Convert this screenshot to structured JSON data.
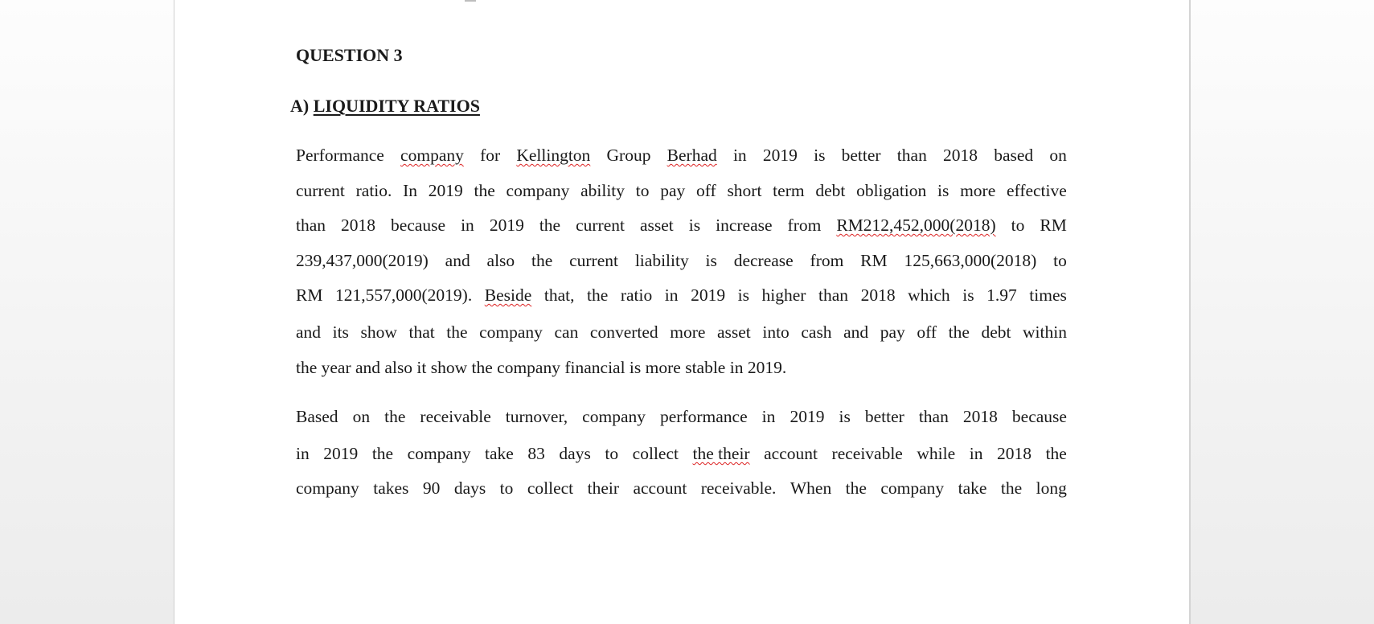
{
  "heading": "QUESTION 3",
  "section_prefix": "A)",
  "section_title": "LIQUIDITY RATIOS",
  "paragraphs": [
    {
      "lines": [
        [
          {
            "t": "Performance"
          },
          {
            "t": "company",
            "err": true
          },
          {
            "t": "for"
          },
          {
            "t": "Kellington",
            "err": true
          },
          {
            "t": "Group"
          },
          {
            "t": "Berhad",
            "err": true
          },
          {
            "t": "in"
          },
          {
            "t": "2019"
          },
          {
            "t": "is"
          },
          {
            "t": "better"
          },
          {
            "t": "than"
          },
          {
            "t": "2018"
          },
          {
            "t": "based"
          },
          {
            "t": "on"
          }
        ],
        [
          {
            "t": "current"
          },
          {
            "t": "ratio."
          },
          {
            "t": "In"
          },
          {
            "t": "2019"
          },
          {
            "t": "the"
          },
          {
            "t": "company"
          },
          {
            "t": "ability"
          },
          {
            "t": "to"
          },
          {
            "t": "pay"
          },
          {
            "t": "off"
          },
          {
            "t": "short"
          },
          {
            "t": "term"
          },
          {
            "t": "debt"
          },
          {
            "t": "obligation"
          },
          {
            "t": "is"
          },
          {
            "t": "more"
          },
          {
            "t": "effective"
          }
        ],
        [
          {
            "t": "than"
          },
          {
            "t": "2018"
          },
          {
            "t": "because"
          },
          {
            "t": "in"
          },
          {
            "t": "2019"
          },
          {
            "t": "the"
          },
          {
            "t": "current"
          },
          {
            "t": "asset"
          },
          {
            "t": "is"
          },
          {
            "t": "increase"
          },
          {
            "t": "from"
          },
          {
            "t": "RM212,452,000(2018)",
            "err": true
          },
          {
            "t": "to"
          },
          {
            "t": "RM"
          }
        ],
        [
          {
            "t": "239,437,000(2019)"
          },
          {
            "t": "and"
          },
          {
            "t": "also"
          },
          {
            "t": "the"
          },
          {
            "t": "current"
          },
          {
            "t": "liability"
          },
          {
            "t": "is"
          },
          {
            "t": "decrease"
          },
          {
            "t": "from"
          },
          {
            "t": "RM"
          },
          {
            "t": "125,663,000(2018)"
          },
          {
            "t": "to"
          }
        ],
        [
          {
            "t": "RM"
          },
          {
            "t": "121,557,000(2019)."
          },
          {
            "t": "Beside",
            "err": true
          },
          {
            "t": "that,"
          },
          {
            "t": "the"
          },
          {
            "t": "ratio"
          },
          {
            "t": "in"
          },
          {
            "t": "2019"
          },
          {
            "t": "is"
          },
          {
            "t": "higher"
          },
          {
            "t": "than"
          },
          {
            "t": "2018"
          },
          {
            "t": "which"
          },
          {
            "t": "is"
          },
          {
            "t": "1.97"
          },
          {
            "t": "times"
          }
        ],
        [
          {
            "t": "and"
          },
          {
            "t": "its"
          },
          {
            "t": "show"
          },
          {
            "t": "that"
          },
          {
            "t": "the"
          },
          {
            "t": "company"
          },
          {
            "t": "can"
          },
          {
            "t": "converted"
          },
          {
            "t": "more"
          },
          {
            "t": "asset"
          },
          {
            "t": "into"
          },
          {
            "t": "cash"
          },
          {
            "t": "and"
          },
          {
            "t": "pay"
          },
          {
            "t": "off"
          },
          {
            "t": "the"
          },
          {
            "t": "debt"
          },
          {
            "t": "within"
          }
        ],
        [
          {
            "t": "the year and also it show the company financial is more stable in 2019."
          }
        ]
      ]
    },
    {
      "lines": [
        [
          {
            "t": "Based"
          },
          {
            "t": "on"
          },
          {
            "t": "the"
          },
          {
            "t": "receivable"
          },
          {
            "t": "turnover,"
          },
          {
            "t": "company"
          },
          {
            "t": "performance"
          },
          {
            "t": "in"
          },
          {
            "t": "2019"
          },
          {
            "t": "is"
          },
          {
            "t": "better"
          },
          {
            "t": "than"
          },
          {
            "t": "2018"
          },
          {
            "t": "because"
          }
        ],
        [
          {
            "t": "in"
          },
          {
            "t": "2019"
          },
          {
            "t": "the"
          },
          {
            "t": "company"
          },
          {
            "t": "take"
          },
          {
            "t": "83"
          },
          {
            "t": "days"
          },
          {
            "t": "to"
          },
          {
            "t": "collect"
          },
          {
            "t": "the their",
            "err": true
          },
          {
            "t": "account"
          },
          {
            "t": "receivable"
          },
          {
            "t": "while"
          },
          {
            "t": "in"
          },
          {
            "t": "2018"
          },
          {
            "t": "the"
          }
        ],
        [
          {
            "t": "company"
          },
          {
            "t": "takes"
          },
          {
            "t": "90"
          },
          {
            "t": "days"
          },
          {
            "t": "to"
          },
          {
            "t": "collect"
          },
          {
            "t": "their"
          },
          {
            "t": "account"
          },
          {
            "t": "receivable."
          },
          {
            "t": "When"
          },
          {
            "t": "the"
          },
          {
            "t": "company"
          },
          {
            "t": "take"
          },
          {
            "t": "the"
          },
          {
            "t": "long"
          }
        ]
      ]
    }
  ]
}
